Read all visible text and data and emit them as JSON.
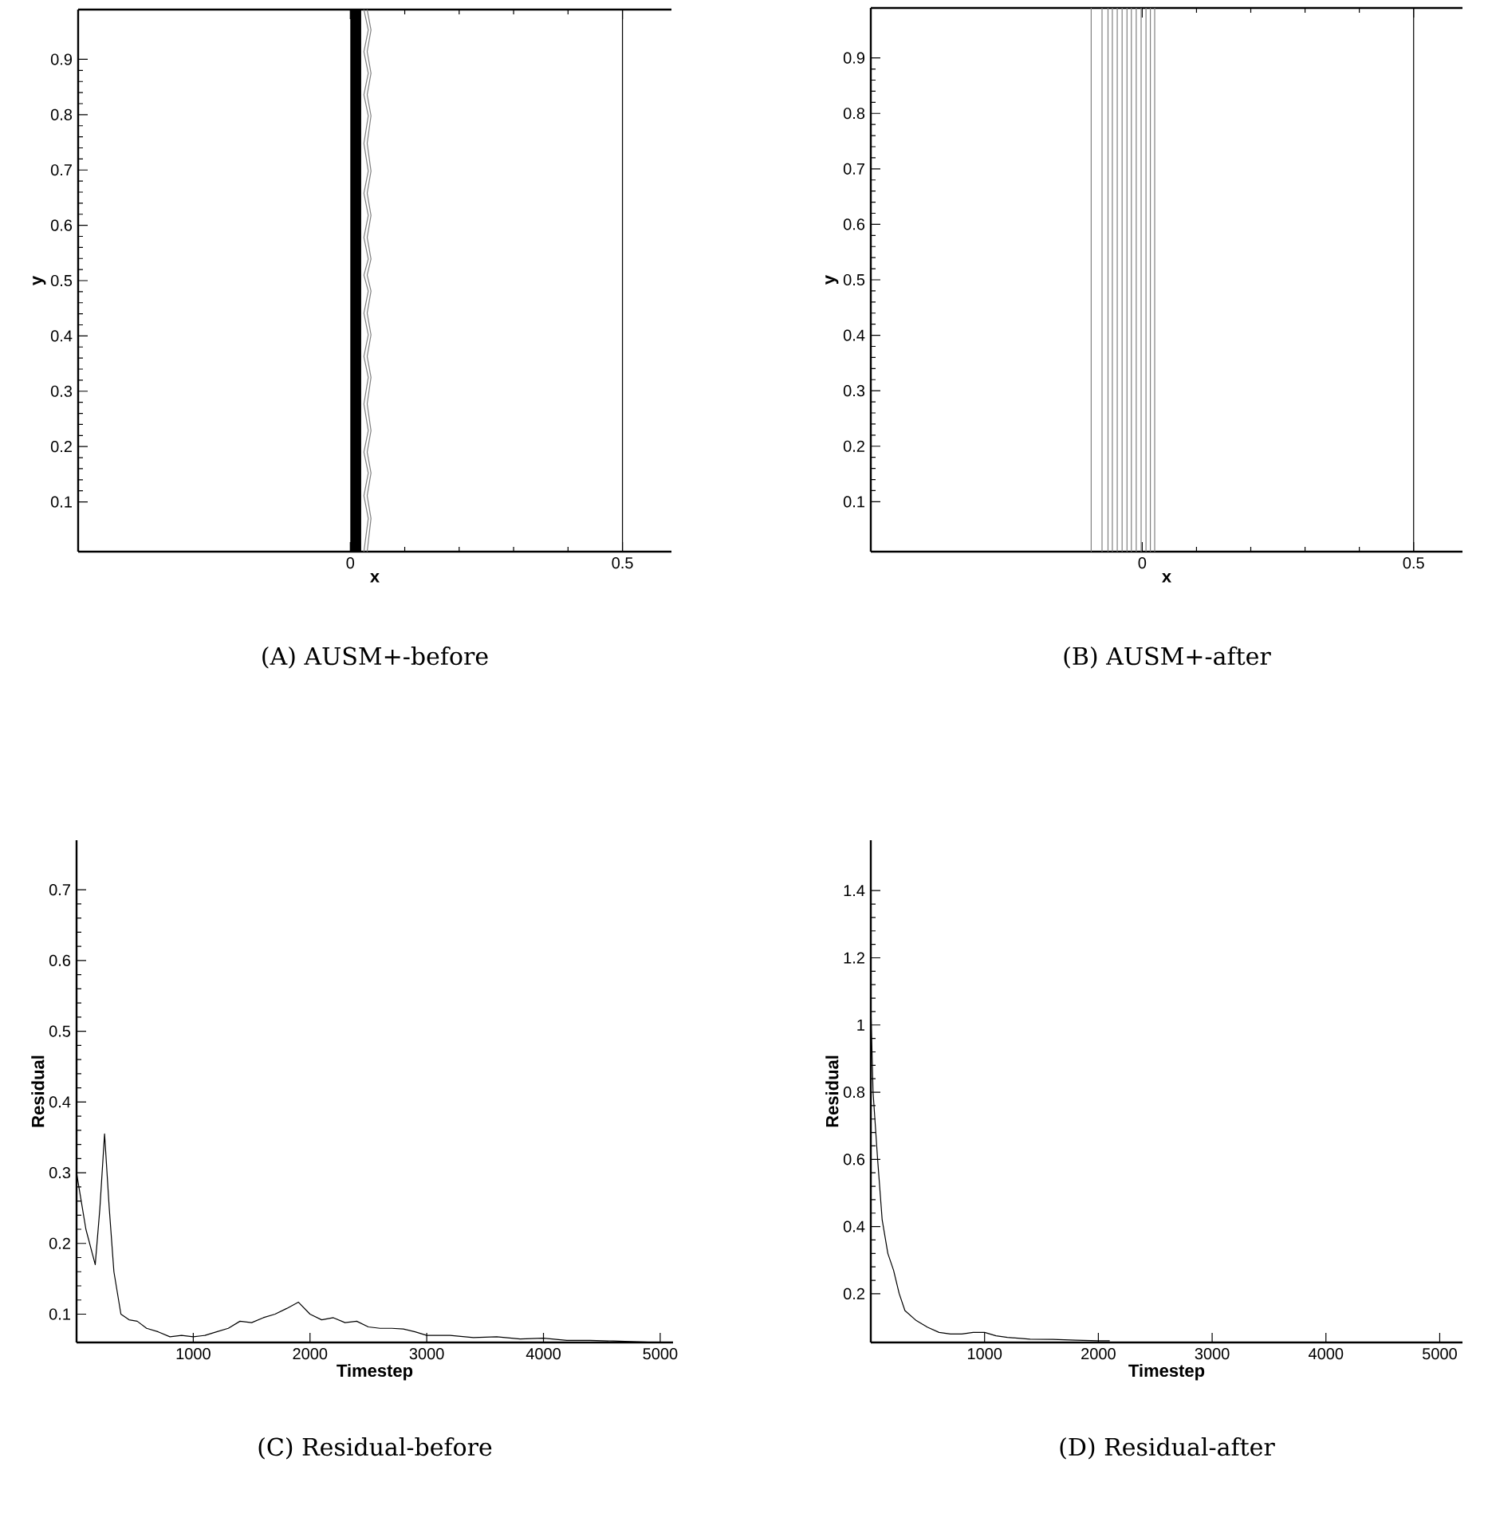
{
  "chart_data": [
    {
      "type": "line",
      "title": "(A) AUSM+-before",
      "xlabel": "x",
      "ylabel": "y",
      "xlim": [
        -0.5,
        0.59
      ],
      "ylim": [
        0.01,
        0.99
      ],
      "xticks": [
        0,
        0.5
      ],
      "yticks": [
        0.1,
        0.2,
        0.3,
        0.4,
        0.5,
        0.6,
        0.7,
        0.8,
        0.9
      ],
      "grid": false,
      "ref_lines": [
        {
          "axis": "x",
          "value": 0.5,
          "color": "#000000"
        }
      ],
      "bands": [
        {
          "axis": "x",
          "from": 0.0,
          "to": 0.02,
          "color": "#000000"
        }
      ],
      "series": [
        {
          "color": "#808080",
          "x": [
            0.025,
            0.033,
            0.025,
            0.033,
            0.025,
            0.033,
            0.025,
            0.033,
            0.025,
            0.033,
            0.025,
            0.033,
            0.025,
            0.033,
            0.025,
            0.033,
            0.025,
            0.033,
            0.025,
            0.033,
            0.025,
            0.033,
            0.025,
            0.033,
            0.025
          ],
          "values": [
            0.01,
            0.07,
            0.111,
            0.152,
            0.19,
            0.229,
            0.277,
            0.325,
            0.363,
            0.402,
            0.441,
            0.481,
            0.51,
            0.539,
            0.578,
            0.618,
            0.658,
            0.698,
            0.748,
            0.798,
            0.836,
            0.875,
            0.914,
            0.953,
            0.99
          ]
        },
        {
          "color": "#808080",
          "x": [
            0.031,
            0.038,
            0.031,
            0.038,
            0.031,
            0.038,
            0.031,
            0.038,
            0.031,
            0.038,
            0.031,
            0.038,
            0.031,
            0.038,
            0.031,
            0.038,
            0.031,
            0.038,
            0.031,
            0.038,
            0.031,
            0.038,
            0.031,
            0.038,
            0.031
          ],
          "values": [
            0.01,
            0.07,
            0.111,
            0.152,
            0.19,
            0.229,
            0.277,
            0.325,
            0.363,
            0.402,
            0.441,
            0.481,
            0.51,
            0.539,
            0.578,
            0.618,
            0.658,
            0.698,
            0.748,
            0.798,
            0.836,
            0.875,
            0.914,
            0.953,
            0.99
          ]
        }
      ]
    },
    {
      "type": "line",
      "title": "(B) AUSM+-after",
      "xlabel": "x",
      "ylabel": "y",
      "xlim": [
        -0.5,
        0.59
      ],
      "ylim": [
        0.01,
        0.99
      ],
      "xticks": [
        0,
        0.5
      ],
      "yticks": [
        0.1,
        0.2,
        0.3,
        0.4,
        0.5,
        0.6,
        0.7,
        0.8,
        0.9
      ],
      "grid": false,
      "ref_lines": [
        {
          "axis": "x",
          "value": 0.5,
          "color": "#000000"
        },
        {
          "axis": "x",
          "value": -0.094,
          "color": "#808080"
        },
        {
          "axis": "x",
          "value": -0.074,
          "color": "#808080"
        },
        {
          "axis": "x",
          "value": -0.063,
          "color": "#808080"
        },
        {
          "axis": "x",
          "value": -0.055,
          "color": "#808080"
        },
        {
          "axis": "x",
          "value": -0.046,
          "color": "#808080"
        },
        {
          "axis": "x",
          "value": -0.037,
          "color": "#808080"
        },
        {
          "axis": "x",
          "value": -0.028,
          "color": "#808080"
        },
        {
          "axis": "x",
          "value": -0.02,
          "color": "#808080"
        },
        {
          "axis": "x",
          "value": -0.011,
          "color": "#808080"
        },
        {
          "axis": "x",
          "value": -0.002,
          "color": "#808080"
        },
        {
          "axis": "x",
          "value": 0.007,
          "color": "#808080"
        },
        {
          "axis": "x",
          "value": 0.015,
          "color": "#808080"
        },
        {
          "axis": "x",
          "value": 0.023,
          "color": "#808080"
        }
      ]
    },
    {
      "type": "line",
      "title": "(C) Residual-before",
      "xlabel": "Timestep",
      "ylabel": "Residual",
      "xlim": [
        0,
        5110
      ],
      "ylim": [
        0.06,
        0.77
      ],
      "xticks": [
        1000,
        2000,
        3000,
        4000,
        5000
      ],
      "yticks": [
        0.1,
        0.2,
        0.3,
        0.4,
        0.5,
        0.6,
        0.7
      ],
      "series": [
        {
          "color": "#000000",
          "x": [
            0,
            80,
            160,
            200,
            240,
            280,
            320,
            380,
            450,
            520,
            600,
            700,
            800,
            900,
            1000,
            1100,
            1200,
            1300,
            1400,
            1500,
            1600,
            1700,
            1800,
            1900,
            2000,
            2100,
            2200,
            2300,
            2400,
            2500,
            2600,
            2700,
            2800,
            2900,
            3000,
            3200,
            3400,
            3600,
            3800,
            4000,
            4200,
            4400,
            4600,
            4800,
            5000
          ],
          "values": [
            0.3,
            0.22,
            0.17,
            0.25,
            0.355,
            0.25,
            0.16,
            0.1,
            0.092,
            0.09,
            0.08,
            0.075,
            0.068,
            0.07,
            0.068,
            0.07,
            0.075,
            0.08,
            0.09,
            0.088,
            0.095,
            0.1,
            0.108,
            0.117,
            0.1,
            0.092,
            0.095,
            0.088,
            0.09,
            0.082,
            0.08,
            0.08,
            0.079,
            0.075,
            0.07,
            0.07,
            0.067,
            0.068,
            0.065,
            0.066,
            0.063,
            0.063,
            0.062,
            0.061,
            0.06
          ]
        }
      ]
    },
    {
      "type": "line",
      "title": "(D) Residual-after",
      "xlabel": "Timestep",
      "ylabel": "Residual",
      "xlim": [
        0,
        5200
      ],
      "ylim": [
        0.055,
        1.55
      ],
      "xticks": [
        1000,
        2000,
        3000,
        4000,
        5000
      ],
      "yticks": [
        0.2,
        0.4,
        0.6,
        0.8,
        1,
        1.2,
        1.4
      ],
      "series": [
        {
          "color": "#000000",
          "x": [
            0,
            20,
            60,
            100,
            150,
            200,
            250,
            300,
            400,
            500,
            600,
            700,
            800,
            900,
            1000,
            1100,
            1200,
            1400,
            1600,
            1800,
            2000,
            2100
          ],
          "values": [
            1.06,
            0.8,
            0.6,
            0.42,
            0.32,
            0.27,
            0.2,
            0.15,
            0.12,
            0.1,
            0.085,
            0.08,
            0.08,
            0.085,
            0.085,
            0.075,
            0.07,
            0.065,
            0.064,
            0.062,
            0.06,
            0.06
          ]
        }
      ]
    }
  ]
}
